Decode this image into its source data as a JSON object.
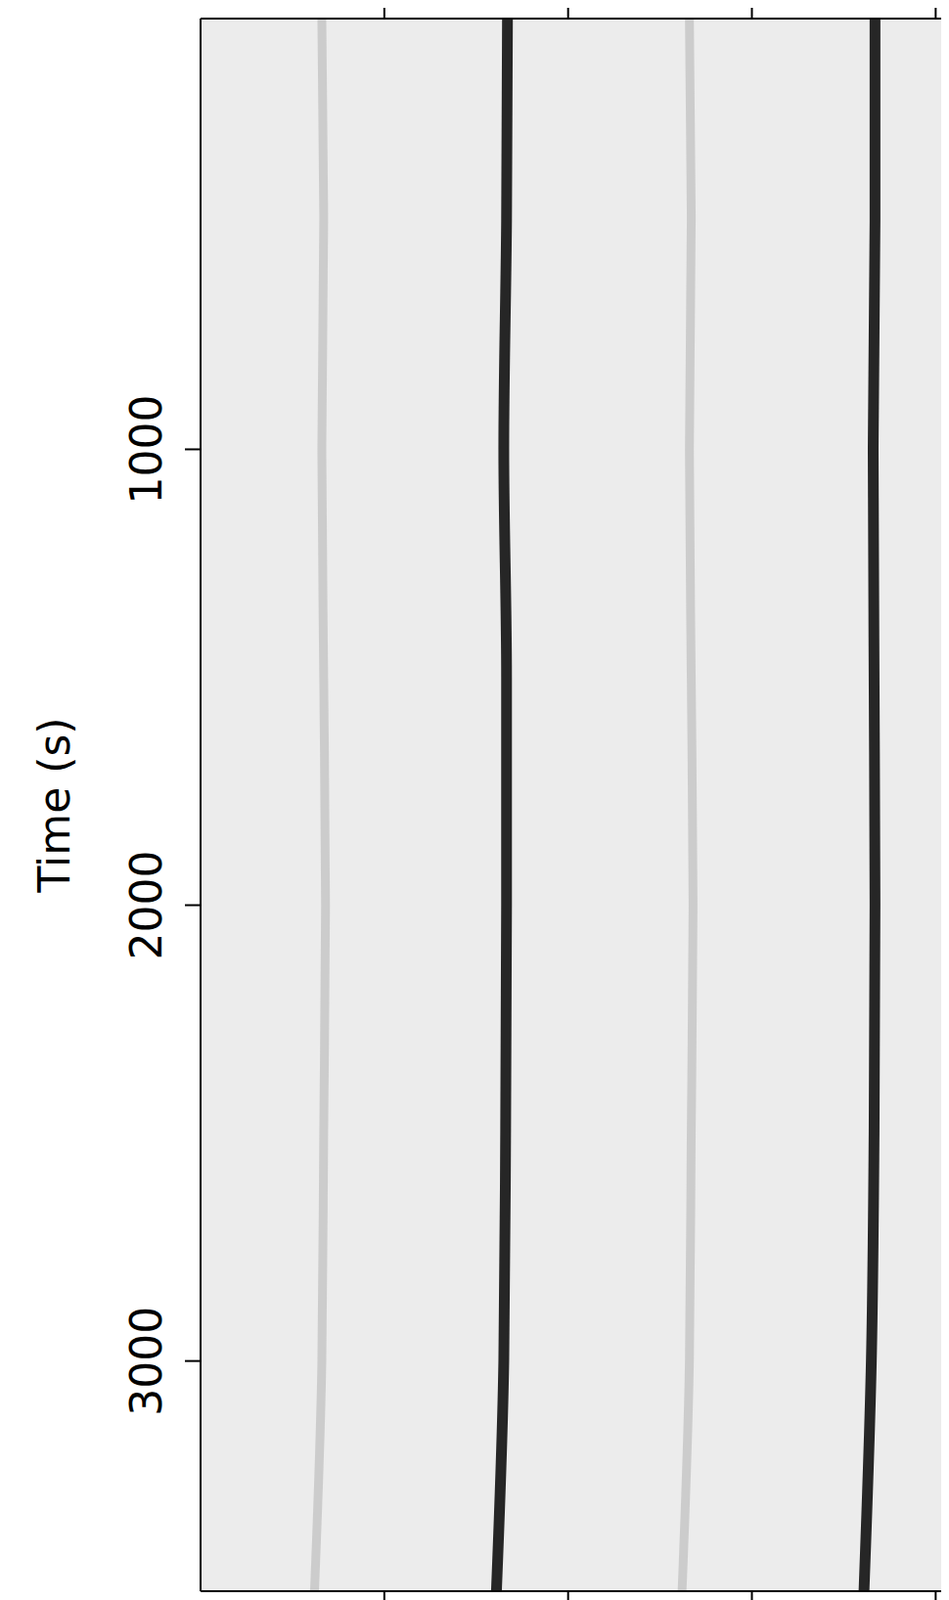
{
  "chart_data": {
    "type": "line",
    "y_label": "Time (s)",
    "orientation": "horizontal",
    "tick_labels": "y",
    "xlim": [
      0,
      4.03
    ],
    "xticks": [
      1,
      2,
      3,
      4
    ],
    "ylim": [
      55,
      3505
    ],
    "yticks": [
      1000,
      2000,
      3000
    ],
    "time": [
      55,
      500,
      1000,
      1500,
      2000,
      2500,
      3000,
      3505
    ],
    "series": [
      {
        "color": "#111111",
        "values": [
          1.67,
          1.665,
          1.65,
          1.665,
          1.665,
          1.66,
          1.65,
          1.61
        ]
      },
      {
        "color": "#111111",
        "values": [
          3.67,
          3.67,
          3.66,
          3.665,
          3.67,
          3.665,
          3.65,
          3.61
        ]
      },
      {
        "color": "#c4c4c4",
        "values": [
          0.66,
          0.67,
          0.66,
          0.67,
          0.68,
          0.67,
          0.66,
          0.62
        ]
      },
      {
        "color": "#c4c4c4",
        "values": [
          2.66,
          2.67,
          2.66,
          2.67,
          2.68,
          2.67,
          2.66,
          2.62
        ]
      }
    ]
  }
}
